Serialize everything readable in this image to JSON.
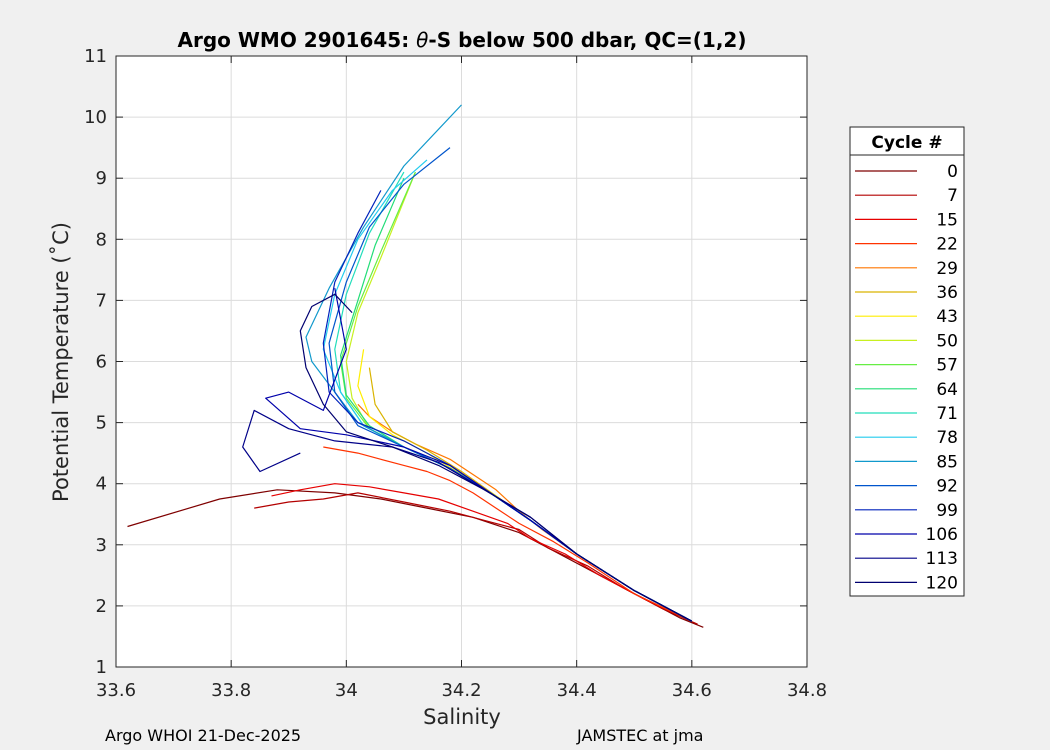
{
  "chart_data": {
    "type": "line",
    "title_prefix": "Argo WMO 2901645: ",
    "title_symbol": "θ",
    "title_suffix": "-S below 500 dbar,  QC=(1,2)",
    "xlabel": "Salinity",
    "ylabel": "Potential Temperature (˚C)",
    "xlim": [
      33.6,
      34.8
    ],
    "ylim": [
      1,
      11
    ],
    "x_ticks": [
      "33.6",
      "33.8",
      "34",
      "34.2",
      "34.4",
      "34.6",
      "34.8"
    ],
    "y_ticks": [
      "1",
      "2",
      "3",
      "4",
      "5",
      "6",
      "7",
      "8",
      "9",
      "10",
      "11"
    ],
    "grid": true,
    "legend": {
      "title": "Cycle #",
      "placement": "right-outside",
      "entries": [
        {
          "label": "0",
          "color": "#7f0000"
        },
        {
          "label": "7",
          "color": "#b30000"
        },
        {
          "label": "15",
          "color": "#e60000"
        },
        {
          "label": "22",
          "color": "#ff3300"
        },
        {
          "label": "29",
          "color": "#ff7700"
        },
        {
          "label": "36",
          "color": "#d9b300"
        },
        {
          "label": "43",
          "color": "#ffee00"
        },
        {
          "label": "50",
          "color": "#c8f020"
        },
        {
          "label": "57",
          "color": "#66ee44"
        },
        {
          "label": "64",
          "color": "#22dd77"
        },
        {
          "label": "71",
          "color": "#22ddbb"
        },
        {
          "label": "78",
          "color": "#22ccee"
        },
        {
          "label": "85",
          "color": "#1199cc"
        },
        {
          "label": "92",
          "color": "#0055cc"
        },
        {
          "label": "99",
          "color": "#0022bb"
        },
        {
          "label": "106",
          "color": "#0000aa"
        },
        {
          "label": "113",
          "color": "#000088"
        },
        {
          "label": "120",
          "color": "#000070"
        }
      ]
    },
    "series": [
      {
        "name": "0",
        "color": "#7f0000",
        "x": [
          34.62,
          34.58,
          34.5,
          34.42,
          34.36,
          34.3,
          34.22,
          34.14,
          34.06,
          33.98,
          33.88,
          33.78,
          33.62
        ],
        "y": [
          1.65,
          1.8,
          2.2,
          2.6,
          2.9,
          3.2,
          3.45,
          3.6,
          3.75,
          3.85,
          3.9,
          3.75,
          3.3
        ]
      },
      {
        "name": "7",
        "color": "#b30000",
        "x": [
          34.61,
          34.55,
          34.48,
          34.42,
          34.35,
          34.3,
          34.24,
          34.18,
          34.1,
          34.02,
          33.96,
          33.9,
          33.84
        ],
        "y": [
          1.7,
          1.95,
          2.3,
          2.65,
          2.95,
          3.25,
          3.4,
          3.55,
          3.7,
          3.85,
          3.75,
          3.7,
          3.6
        ]
      },
      {
        "name": "15",
        "color": "#e60000",
        "x": [
          34.6,
          34.52,
          34.44,
          34.38,
          34.32,
          34.28,
          34.22,
          34.16,
          34.1,
          34.04,
          33.98,
          33.92,
          33.87
        ],
        "y": [
          1.75,
          2.1,
          2.5,
          2.85,
          3.1,
          3.35,
          3.55,
          3.75,
          3.85,
          3.95,
          4.0,
          3.9,
          3.8
        ]
      },
      {
        "name": "22",
        "color": "#ff3300",
        "x": [
          34.6,
          34.5,
          34.42,
          34.36,
          34.3,
          34.26,
          34.22,
          34.18,
          34.14,
          34.1,
          34.06,
          34.02,
          33.96
        ],
        "y": [
          1.75,
          2.2,
          2.7,
          3.05,
          3.35,
          3.6,
          3.85,
          4.05,
          4.2,
          4.3,
          4.4,
          4.5,
          4.6
        ]
      },
      {
        "name": "29",
        "color": "#ff7700",
        "x": [
          34.6,
          34.5,
          34.4,
          34.34,
          34.3,
          34.26,
          34.22,
          34.18,
          34.12,
          34.08,
          34.04,
          34.02
        ],
        "y": [
          1.75,
          2.25,
          2.85,
          3.25,
          3.55,
          3.9,
          4.15,
          4.4,
          4.65,
          4.85,
          5.1,
          5.3
        ]
      },
      {
        "name": "36",
        "color": "#d9b300",
        "x": [
          34.6,
          34.5,
          34.4,
          34.32,
          34.26,
          34.2,
          34.14,
          34.08,
          34.05,
          34.04
        ],
        "y": [
          1.75,
          2.25,
          2.85,
          3.4,
          3.8,
          4.2,
          4.55,
          4.85,
          5.3,
          5.9
        ]
      },
      {
        "name": "43",
        "color": "#ffee00",
        "x": [
          34.6,
          34.5,
          34.4,
          34.32,
          34.26,
          34.2,
          34.14,
          34.08,
          34.04,
          34.02,
          34.03
        ],
        "y": [
          1.75,
          2.25,
          2.85,
          3.4,
          3.8,
          4.15,
          4.5,
          4.8,
          5.1,
          5.6,
          6.2
        ]
      },
      {
        "name": "50",
        "color": "#c8f020",
        "x": [
          34.6,
          34.5,
          34.4,
          34.32,
          34.25,
          34.18,
          34.1,
          34.04,
          34.01,
          34.0,
          34.02,
          34.06,
          34.12
        ],
        "y": [
          1.75,
          2.25,
          2.85,
          3.4,
          3.85,
          4.25,
          4.6,
          4.9,
          5.4,
          6.0,
          6.8,
          7.7,
          9.1
        ]
      },
      {
        "name": "57",
        "color": "#66ee44",
        "x": [
          34.6,
          34.5,
          34.4,
          34.32,
          34.25,
          34.18,
          34.1,
          34.04,
          34.0,
          33.99,
          34.02,
          34.06,
          34.12
        ],
        "y": [
          1.75,
          2.25,
          2.85,
          3.4,
          3.85,
          4.25,
          4.6,
          4.9,
          5.4,
          6.0,
          6.9,
          7.8,
          9.1
        ]
      },
      {
        "name": "64",
        "color": "#22dd77",
        "x": [
          34.6,
          34.5,
          34.4,
          34.32,
          34.25,
          34.18,
          34.1,
          34.04,
          34.0,
          33.99,
          34.02,
          34.05,
          34.1
        ],
        "y": [
          1.75,
          2.25,
          2.85,
          3.4,
          3.85,
          4.25,
          4.6,
          4.95,
          5.45,
          6.1,
          7.0,
          7.9,
          9.0
        ]
      },
      {
        "name": "71",
        "color": "#22ddbb",
        "x": [
          34.6,
          34.5,
          34.4,
          34.32,
          34.25,
          34.18,
          34.1,
          34.03,
          33.99,
          33.98,
          34.0,
          34.04,
          34.1
        ],
        "y": [
          1.75,
          2.25,
          2.85,
          3.4,
          3.85,
          4.25,
          4.6,
          4.95,
          5.5,
          6.2,
          7.1,
          8.1,
          9.1
        ]
      },
      {
        "name": "78",
        "color": "#22ccee",
        "x": [
          34.6,
          34.5,
          34.4,
          34.32,
          34.25,
          34.18,
          34.1,
          34.03,
          33.99,
          33.96,
          33.98,
          34.02,
          34.08,
          34.14
        ],
        "y": [
          1.75,
          2.25,
          2.85,
          3.4,
          3.85,
          4.25,
          4.6,
          4.95,
          5.5,
          6.2,
          7.1,
          8.0,
          8.8,
          9.3
        ]
      },
      {
        "name": "85",
        "color": "#1199cc",
        "x": [
          34.6,
          34.5,
          34.4,
          34.32,
          34.25,
          34.18,
          34.1,
          34.02,
          33.98,
          33.94,
          33.93,
          33.97,
          34.03,
          34.1,
          34.2
        ],
        "y": [
          1.75,
          2.25,
          2.85,
          3.4,
          3.85,
          4.25,
          4.6,
          5.0,
          5.5,
          6.0,
          6.4,
          7.2,
          8.2,
          9.2,
          10.2
        ]
      },
      {
        "name": "92",
        "color": "#0055cc",
        "x": [
          34.6,
          34.5,
          34.4,
          34.32,
          34.25,
          34.18,
          34.1,
          34.02,
          33.98,
          33.97,
          34.0,
          34.04,
          34.1,
          34.18
        ],
        "y": [
          1.75,
          2.25,
          2.85,
          3.4,
          3.85,
          4.25,
          4.6,
          4.95,
          5.5,
          6.3,
          7.3,
          8.2,
          8.9,
          9.5
        ]
      },
      {
        "name": "99",
        "color": "#0022bb",
        "x": [
          34.6,
          34.5,
          34.4,
          34.32,
          34.25,
          34.18,
          34.1,
          34.02,
          33.97,
          33.96,
          33.98,
          34.02,
          34.06
        ],
        "y": [
          1.75,
          2.25,
          2.85,
          3.4,
          3.85,
          4.3,
          4.7,
          5.0,
          5.5,
          6.3,
          7.3,
          8.1,
          8.8
        ]
      },
      {
        "name": "106",
        "color": "#0000aa",
        "x": [
          34.6,
          34.5,
          34.4,
          34.32,
          34.25,
          34.18,
          34.1,
          34.0,
          33.92,
          33.86,
          33.9,
          33.96,
          34.0,
          33.98
        ],
        "y": [
          1.75,
          2.25,
          2.85,
          3.4,
          3.85,
          4.3,
          4.6,
          4.8,
          4.9,
          5.4,
          5.5,
          5.2,
          6.2,
          7.2
        ]
      },
      {
        "name": "113",
        "color": "#000088",
        "x": [
          34.6,
          34.5,
          34.4,
          34.32,
          34.24,
          34.16,
          34.08,
          33.98,
          33.9,
          33.84,
          33.82,
          33.85,
          33.92
        ],
        "y": [
          1.75,
          2.25,
          2.85,
          3.45,
          3.9,
          4.35,
          4.6,
          4.7,
          4.9,
          5.2,
          4.6,
          4.2,
          4.5
        ]
      },
      {
        "name": "120",
        "color": "#000070",
        "x": [
          34.6,
          34.5,
          34.4,
          34.32,
          34.24,
          34.16,
          34.08,
          34.0,
          33.96,
          33.93,
          33.92,
          33.94,
          33.98,
          34.01
        ],
        "y": [
          1.75,
          2.25,
          2.85,
          3.45,
          3.9,
          4.3,
          4.6,
          4.85,
          5.3,
          5.9,
          6.5,
          6.9,
          7.1,
          6.8
        ]
      }
    ]
  },
  "footer": {
    "left": "Argo WHOI 21-Dec-2025",
    "right": "JAMSTEC at jma"
  }
}
